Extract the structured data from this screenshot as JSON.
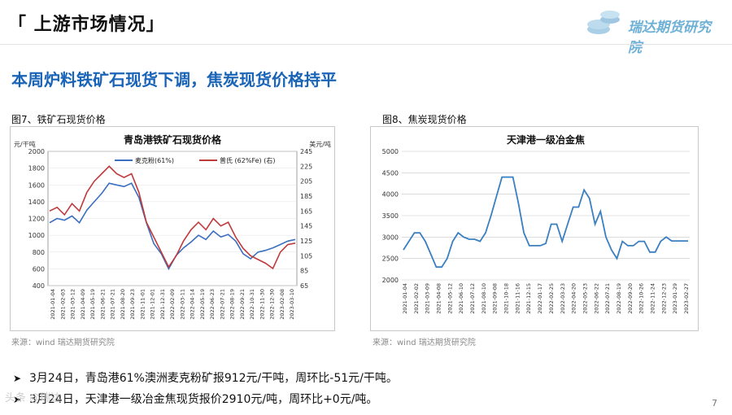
{
  "header": {
    "section_title": "「 上游市场情况」",
    "logo_text": "瑞达期货研究院"
  },
  "headline": "本周炉料铁矿石现货下调，焦炭现货价格持平",
  "figures": [
    {
      "caption": "图7、铁矿石现货价格",
      "source": "来源：wind 瑞达期货研究院"
    },
    {
      "caption": "图8、焦炭现货价格",
      "source": "来源：wind 瑞达期货研究院"
    }
  ],
  "bullets": [
    "3月24日，青岛港61%澳洲麦克粉矿报912元/干吨，周环比-51元/干吨。",
    "3月24日，天津港一级冶金焦现货报价2910元/吨，周环比+0元/吨。"
  ],
  "page_number": "7",
  "watermark": "头条 @瑞达",
  "colors": {
    "series_blue": "#3b6fbf",
    "series_red": "#c0393b",
    "coke_line": "#3a7fc1",
    "headline": "#1a64b8"
  },
  "chart_data": [
    {
      "type": "line",
      "title": "青岛港铁矿石现货价格",
      "ylabel_left": "元/干吨",
      "ylabel_right": "美元/吨",
      "ylim_left": [
        400,
        2000
      ],
      "ylim_right": [
        65,
        245
      ],
      "yticks_left": [
        400,
        600,
        800,
        1000,
        1200,
        1400,
        1600,
        1800,
        2000
      ],
      "yticks_right": [
        65,
        85,
        105,
        125,
        145,
        165,
        185,
        205,
        225,
        245
      ],
      "x_labels": [
        "2021-01-04",
        "2021-02-03",
        "2021-03-12",
        "2021-04-09",
        "2021-05-19",
        "2021-06-21",
        "2021-07-21",
        "2021-08-20",
        "2021-09-23",
        "2021-11-01",
        "2021-12-01",
        "2021-12-31",
        "2022-02-09",
        "2022-03-11",
        "2022-04-14",
        "2022-05-19",
        "2022-06-23",
        "2022-07-21",
        "2022-08-19",
        "2022-09-21",
        "2022-10-31",
        "2022-11-30",
        "2022-12-30",
        "2023-02-08",
        "2023-03-10"
      ],
      "legend": [
        "麦克粉(61%)",
        "普氏 (62%Fe) (右)"
      ],
      "series": [
        {
          "name": "麦克粉(61%)",
          "axis": "left",
          "values": [
            1150,
            1200,
            1180,
            1230,
            1150,
            1300,
            1400,
            1500,
            1620,
            1600,
            1580,
            1620,
            1450,
            1150,
            900,
            780,
            600,
            760,
            850,
            920,
            1000,
            950,
            1050,
            980,
            1010,
            930,
            780,
            720,
            800,
            820,
            850,
            890,
            930,
            950
          ]
        },
        {
          "name": "普氏 (62%Fe) (右)",
          "axis": "right",
          "values": [
            165,
            170,
            160,
            175,
            165,
            190,
            205,
            215,
            225,
            215,
            210,
            215,
            190,
            150,
            130,
            110,
            90,
            105,
            125,
            140,
            150,
            140,
            155,
            145,
            150,
            130,
            115,
            105,
            100,
            95,
            88,
            110,
            120,
            122
          ]
        }
      ]
    },
    {
      "type": "line",
      "title": "天津港一级冶金焦",
      "ylim": [
        2000,
        5000
      ],
      "yticks": [
        2000,
        2500,
        3000,
        3500,
        4000,
        4500,
        5000
      ],
      "x_labels": [
        "2021-01-04",
        "2021-02-02",
        "2021-03-09",
        "2021-04-08",
        "2021-05-12",
        "2021-06-10",
        "2021-07-12",
        "2021-08-10",
        "2021-09-08",
        "2021-10-18",
        "2021-11-16",
        "2021-12-15",
        "2022-01-17",
        "2022-02-25",
        "2022-03-23",
        "2022-04-20",
        "2022-05-23",
        "2022-06-22",
        "2022-07-21",
        "2022-08-19",
        "2022-09-20",
        "2022-10-26",
        "2022-11-24",
        "2022-12-23",
        "2023-01-29",
        "2023-02-27"
      ],
      "series": [
        {
          "name": "天津港一级冶金焦",
          "values": [
            2700,
            2900,
            3100,
            3100,
            2900,
            2600,
            2300,
            2300,
            2500,
            2900,
            3100,
            3000,
            2950,
            2950,
            2900,
            3100,
            3500,
            3950,
            4400,
            4400,
            4400,
            3800,
            3100,
            2800,
            2800,
            2800,
            2850,
            3300,
            3300,
            2900,
            3300,
            3700,
            3700,
            4100,
            3900,
            3300,
            3600,
            3000,
            2700,
            2500,
            2900,
            2800,
            2800,
            2900,
            2900,
            2650,
            2650,
            2900,
            3000,
            2910,
            2910,
            2910,
            2910
          ]
        }
      ]
    }
  ]
}
